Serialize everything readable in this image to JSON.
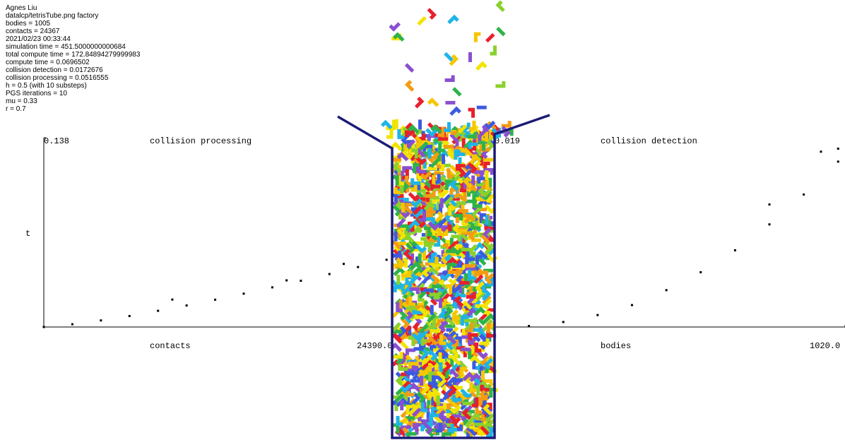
{
  "info": [
    "Agnes Liu",
    "datalcp/tetrisTube.png factory",
    "bodies = 1005",
    "contacts = 24367",
    "2021/02/23 00:33:44",
    "simulation time = 451.5000000000684",
    "total compute time = 172.84894279999983",
    "compute time = 0.0696502",
    "collision detection = 0.0172676",
    "collision processing = 0.0516555",
    "h = 0.5 (with 10 substeps)",
    "PGS iterations = 10",
    "mu = 0.33",
    "r = 0.7"
  ],
  "plots": [
    {
      "title": "collision processing",
      "x_label": "contacts",
      "y_label": "t",
      "xlim": [
        0,
        24390
      ],
      "ylim": [
        0,
        0.138
      ],
      "xticks": [
        {
          "value": 24390,
          "label": "24390.0"
        }
      ],
      "yticks": [
        0.138
      ],
      "x": [
        0,
        2000,
        4000,
        6000,
        8000,
        10000,
        12000,
        14000,
        16000,
        18000,
        20000,
        22000,
        24000,
        9000,
        17000,
        21000
      ],
      "y": [
        0,
        0.002,
        0.0048,
        0.008,
        0.0118,
        0.0157,
        0.0199,
        0.0243,
        0.0289,
        0.0337,
        0.0386,
        0.0437,
        0.049,
        0.02,
        0.034,
        0.046
      ]
    },
    {
      "title": "collision detection",
      "x_label": "bodies",
      "y_label": null,
      "xlim": [
        0,
        1020
      ],
      "ylim": [
        0,
        0.019
      ],
      "xticks": [
        {
          "value": 1020,
          "label": "1020.0"
        }
      ],
      "yticks": [
        0.019
      ],
      "x": [
        0,
        100,
        200,
        300,
        400,
        500,
        600,
        700,
        800,
        900,
        1000,
        800,
        950,
        1000
      ],
      "y": [
        0,
        0.0001,
        0.0005,
        0.0012,
        0.0022,
        0.0037,
        0.0055,
        0.0077,
        0.0103,
        0.0133,
        0.0166,
        0.0123,
        0.0176,
        0.0179
      ]
    }
  ]
}
